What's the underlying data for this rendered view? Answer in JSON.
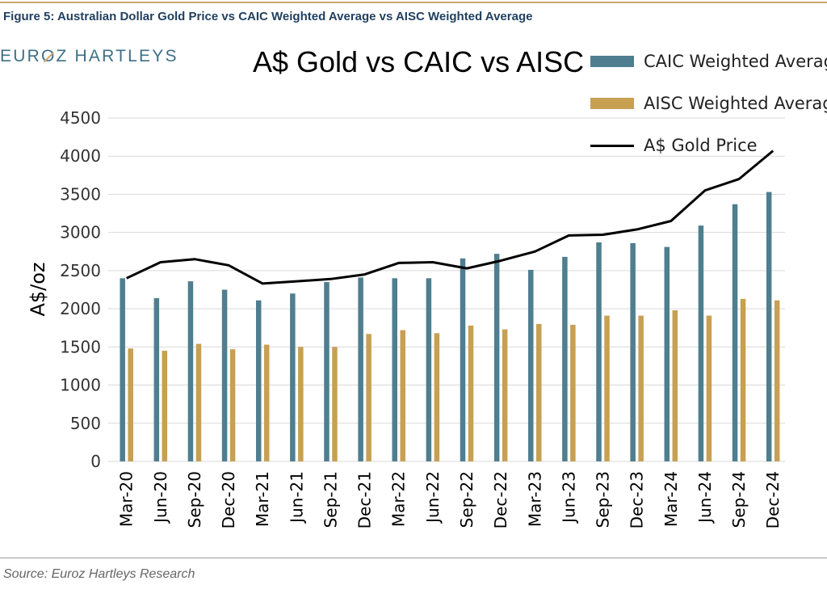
{
  "figure": {
    "caption": "Figure 5: Australian Dollar Gold Price vs CAIC Weighted Average vs AISC Weighted Average",
    "source": "Source: Euroz Hartleys Research"
  },
  "logo": {
    "part1": "EUR",
    "part2": "O",
    "part3": "Z HARTLEYS"
  },
  "colors": {
    "caic": "#4f7e8f",
    "aisc": "#c7a052",
    "gold": "#000000",
    "grid": "#d9d9d9",
    "rule": "#c9a96e"
  },
  "chart_data": {
    "type": "bar",
    "title": "A$ Gold vs CAIC vs AISC",
    "ylabel": "A$/oz",
    "xlabel": "",
    "ylim": [
      0,
      4500
    ],
    "yticks": [
      0,
      500,
      1000,
      1500,
      2000,
      2500,
      3000,
      3500,
      4000,
      4500
    ],
    "grid": true,
    "legend_position": "top-right",
    "categories": [
      "Mar-20",
      "Jun-20",
      "Sep-20",
      "Dec-20",
      "Mar-21",
      "Jun-21",
      "Sep-21",
      "Dec-21",
      "Mar-22",
      "Jun-22",
      "Sep-22",
      "Dec-22",
      "Mar-23",
      "Jun-23",
      "Sep-23",
      "Dec-23",
      "Mar-24",
      "Jun-24",
      "Sep-24",
      "Dec-24"
    ],
    "series": [
      {
        "name": "CAIC Weighted Average",
        "type": "bar",
        "values": [
          2400,
          2140,
          2360,
          2250,
          2110,
          2200,
          2350,
          2410,
          2400,
          2400,
          2660,
          2720,
          2510,
          2680,
          2870,
          2860,
          2810,
          3090,
          3370,
          3530
        ]
      },
      {
        "name": "AISC Weighted Average",
        "type": "bar",
        "values": [
          1480,
          1450,
          1540,
          1470,
          1530,
          1500,
          1500,
          1670,
          1720,
          1680,
          1780,
          1730,
          1800,
          1790,
          1910,
          1910,
          1980,
          1910,
          2130,
          2110
        ]
      },
      {
        "name": "A$ Gold Price",
        "type": "line",
        "values": [
          2400,
          2610,
          2650,
          2570,
          2330,
          2360,
          2390,
          2450,
          2600,
          2610,
          2530,
          2630,
          2750,
          2960,
          2970,
          3040,
          3150,
          3550,
          3700,
          4070
        ]
      }
    ]
  }
}
